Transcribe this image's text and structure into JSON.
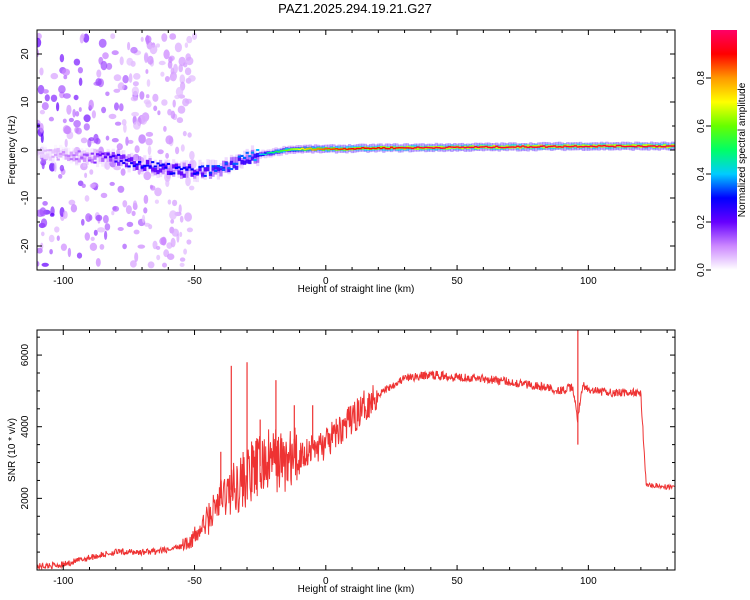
{
  "title": "PAZ1.2025.294.19.21.G27",
  "chart_data": [
    {
      "type": "heatmap",
      "title": "PAZ1.2025.294.19.21.G27",
      "xlabel": "Height of straight line (km)",
      "ylabel": "Frequency (Hz)",
      "xlim": [
        -110,
        133
      ],
      "ylim": [
        -25,
        25
      ],
      "x_ticks": [
        -100,
        -50,
        0,
        50,
        100
      ],
      "y_ticks": [
        -20,
        -10,
        0,
        10,
        20
      ],
      "colorbar": {
        "label": "Normalized spectral amplitude",
        "range": [
          0,
          1
        ],
        "ticks": [
          "0.0",
          "0.2",
          "0.4",
          "0.6",
          "0.8"
        ],
        "tick_values": [
          0,
          0.2,
          0.4,
          0.6,
          0.8
        ],
        "colors": [
          "#ffffff",
          "#cc88ff",
          "#6600ff",
          "#0000ff",
          "#00ccff",
          "#00ff66",
          "#66ff00",
          "#ffff00",
          "#ff9900",
          "#ff0000",
          "#ff0066"
        ]
      },
      "ridge": {
        "x": [
          -108,
          -100,
          -90,
          -80,
          -70,
          -60,
          -50,
          -40,
          -35,
          -30,
          -25,
          -20,
          -15,
          -10,
          -5,
          0,
          10,
          20,
          40,
          60,
          80,
          100,
          120,
          133
        ],
        "freq_hz": [
          -1.0,
          -1.0,
          -1.5,
          -2.0,
          -3.0,
          -4.0,
          -4.5,
          -4.0,
          -3.0,
          -1.5,
          -1.0,
          -0.5,
          0,
          0.2,
          0.2,
          0.2,
          0.3,
          0.4,
          0.5,
          0.6,
          0.7,
          0.8,
          0.8,
          0.8
        ],
        "amplitude": [
          0.05,
          0.1,
          0.15,
          0.25,
          0.3,
          0.3,
          0.3,
          0.35,
          0.35,
          0.35,
          0.4,
          0.5,
          0.6,
          0.7,
          0.8,
          0.85,
          0.9,
          0.9,
          0.95,
          0.95,
          0.95,
          0.95,
          0.95,
          0.95
        ]
      }
    },
    {
      "type": "line",
      "xlabel": "Height of straight line (km)",
      "ylabel": "SNR (10 * v/v)",
      "xlim": [
        -110,
        133
      ],
      "ylim": [
        0,
        6700
      ],
      "x_ticks": [
        -100,
        -50,
        0,
        50,
        100
      ],
      "y_ticks": [
        2000,
        4000,
        6000
      ],
      "series": [
        {
          "name": "SNR",
          "color": "#ee3333",
          "x": [
            -110,
            -100,
            -90,
            -80,
            -70,
            -60,
            -55,
            -50,
            -45,
            -40,
            -35,
            -30,
            -25,
            -20,
            -15,
            -10,
            -5,
            0,
            5,
            10,
            15,
            20,
            25,
            30,
            40,
            50,
            60,
            70,
            80,
            90,
            94,
            96,
            98,
            100,
            110,
            118,
            120,
            122,
            125,
            133
          ],
          "y": [
            100,
            150,
            350,
            500,
            500,
            550,
            700,
            900,
            1400,
            2000,
            2300,
            2600,
            2900,
            3100,
            3000,
            3200,
            3400,
            3500,
            3900,
            4200,
            4600,
            4900,
            5150,
            5350,
            5450,
            5400,
            5350,
            5250,
            5150,
            5000,
            5100,
            4200,
            5200,
            5000,
            4950,
            4950,
            4900,
            2400,
            2350,
            2300
          ]
        }
      ],
      "spikes": [
        {
          "x": -40,
          "y": 3300
        },
        {
          "x": -36,
          "y": 5700
        },
        {
          "x": -30,
          "y": 5800
        },
        {
          "x": -25,
          "y": 4200
        },
        {
          "x": -19,
          "y": 5300
        },
        {
          "x": -12,
          "y": 4600
        },
        {
          "x": -5,
          "y": 4600
        },
        {
          "x": 96,
          "y": 6700
        },
        {
          "x": 96,
          "y": 3500
        }
      ]
    }
  ]
}
